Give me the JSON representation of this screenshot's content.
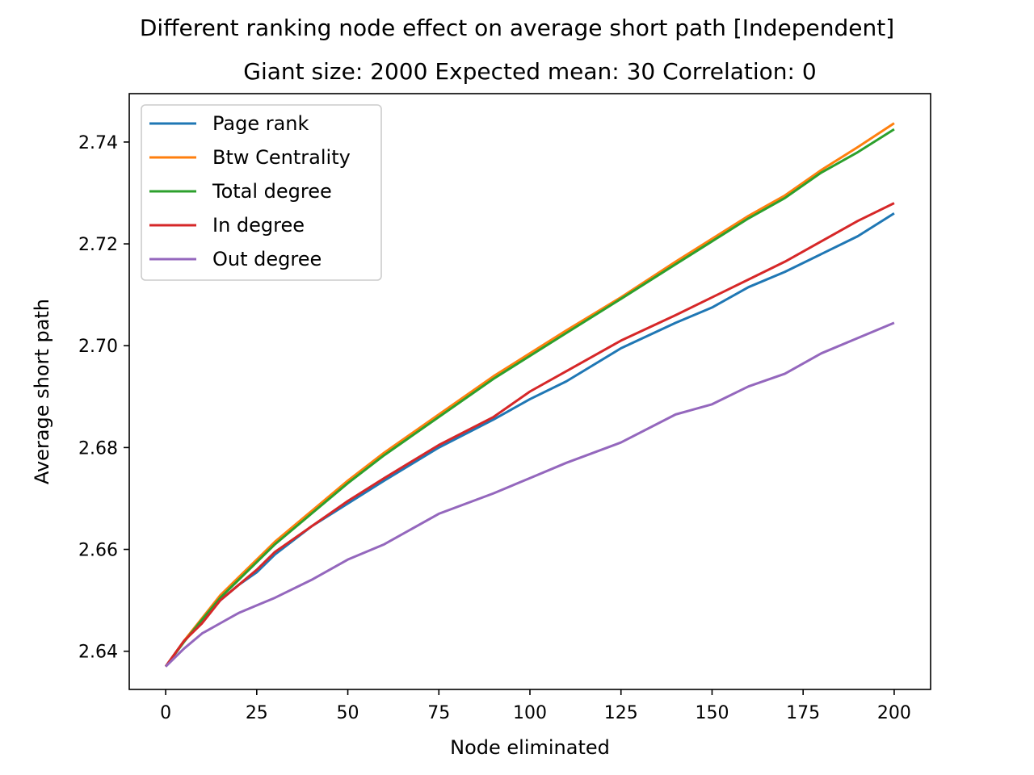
{
  "chart_data": {
    "type": "line",
    "title": "Different ranking node effect on average short path [Independent]",
    "subtitle": "Giant size: 2000  Expected mean: 30  Correlation: 0",
    "xlabel": "Node eliminated",
    "ylabel": "Average short path",
    "xlim": [
      -10,
      210
    ],
    "ylim": [
      2.6325,
      2.7495
    ],
    "xticks": [
      0,
      25,
      50,
      75,
      100,
      125,
      150,
      175,
      200
    ],
    "xtick_labels": [
      "0",
      "25",
      "50",
      "75",
      "100",
      "125",
      "150",
      "175",
      "200"
    ],
    "yticks": [
      2.64,
      2.66,
      2.68,
      2.7,
      2.72,
      2.74
    ],
    "ytick_labels": [
      "2.64",
      "2.66",
      "2.68",
      "2.70",
      "2.72",
      "2.74"
    ],
    "grid": false,
    "legend_position": "top-left",
    "x": [
      0,
      5,
      10,
      15,
      20,
      25,
      30,
      40,
      50,
      60,
      75,
      90,
      100,
      110,
      125,
      140,
      150,
      160,
      170,
      180,
      190,
      200
    ],
    "series": [
      {
        "name": "Page rank",
        "color": "#1f77b4",
        "values": [
          2.637,
          2.642,
          2.646,
          2.65,
          2.653,
          2.6555,
          2.659,
          2.6645,
          2.669,
          2.6735,
          2.68,
          2.6855,
          2.6895,
          2.693,
          2.6995,
          2.7045,
          2.7075,
          2.7115,
          2.7145,
          2.718,
          2.7215,
          2.726
        ]
      },
      {
        "name": "Btw Centrality",
        "color": "#ff7f0e",
        "values": [
          2.637,
          2.642,
          2.6465,
          2.651,
          2.6545,
          2.658,
          2.6615,
          2.6675,
          2.6735,
          2.679,
          2.6865,
          2.694,
          2.6985,
          2.703,
          2.7095,
          2.7165,
          2.721,
          2.7255,
          2.7295,
          2.7345,
          2.739,
          2.7437
        ]
      },
      {
        "name": "Total degree",
        "color": "#2ca02c",
        "values": [
          2.637,
          2.6418,
          2.6462,
          2.6505,
          2.654,
          2.6575,
          2.661,
          2.667,
          2.673,
          2.6785,
          2.686,
          2.6935,
          2.698,
          2.7025,
          2.7092,
          2.716,
          2.7205,
          2.725,
          2.729,
          2.734,
          2.738,
          2.7425
        ]
      },
      {
        "name": "In degree",
        "color": "#d62728",
        "values": [
          2.637,
          2.642,
          2.6455,
          2.65,
          2.653,
          2.656,
          2.6595,
          2.6645,
          2.6695,
          2.674,
          2.6805,
          2.686,
          2.691,
          2.695,
          2.701,
          2.706,
          2.7095,
          2.713,
          2.7165,
          2.7205,
          2.7245,
          2.728
        ]
      },
      {
        "name": "Out degree",
        "color": "#9467bd",
        "values": [
          2.637,
          2.6405,
          2.6435,
          2.6455,
          2.6475,
          2.649,
          2.6505,
          2.654,
          2.658,
          2.661,
          2.667,
          2.671,
          2.674,
          2.677,
          2.681,
          2.6865,
          2.6885,
          2.692,
          2.6945,
          2.6985,
          2.7015,
          2.7045
        ]
      }
    ]
  }
}
